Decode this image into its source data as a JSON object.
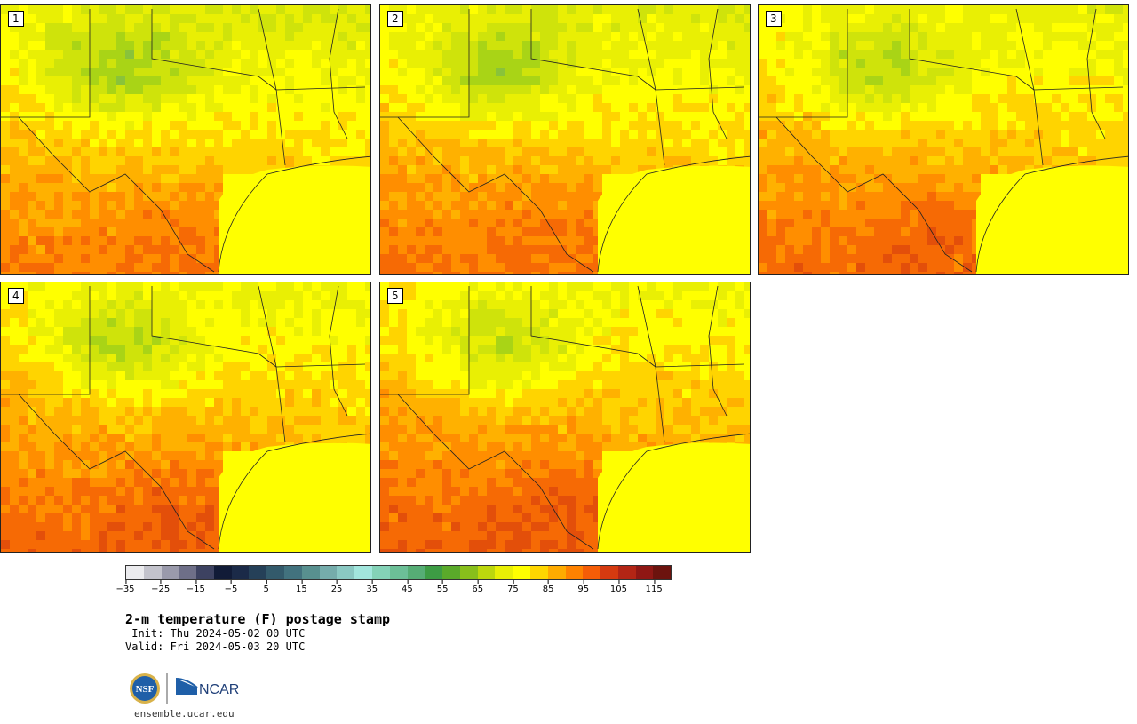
{
  "figure": {
    "title": "2-m temperature (F) postage stamp",
    "init_line": " Init: Thu 2024-05-02 00 UTC",
    "valid_line": "Valid: Fri 2024-05-03 20 UTC",
    "url": "ensemble.ucar.edu"
  },
  "logos": {
    "nsf": "NSF",
    "ncar": "NCAR"
  },
  "panels": [
    {
      "label": "1",
      "variant": 1
    },
    {
      "label": "2",
      "variant": 2
    },
    {
      "label": "3",
      "variant": 3
    },
    {
      "label": "4",
      "variant": 4
    },
    {
      "label": "5",
      "variant": 5
    }
  ],
  "colorbar": {
    "colors": [
      "#ebebee",
      "#c3c3cc",
      "#9a9aab",
      "#6e6f88",
      "#3d4261",
      "#111b37",
      "#1b2a48",
      "#254058",
      "#335a6b",
      "#42727e",
      "#58908f",
      "#75acab",
      "#8ac8c2",
      "#a2e6dd",
      "#84d2b7",
      "#6cbf97",
      "#56ad75",
      "#3d9c44",
      "#5aaa2a",
      "#88bf1b",
      "#bcd70d",
      "#e8ef05",
      "#ffff00",
      "#ffd600",
      "#ffab00",
      "#ff8200",
      "#f55d07",
      "#d53a10",
      "#b32515",
      "#8f1714",
      "#6c130e"
    ],
    "ticks": [
      "−35",
      "−25",
      "−15",
      "−5",
      "5",
      "15",
      "25",
      "35",
      "45",
      "55",
      "65",
      "75",
      "85",
      "95",
      "105",
      "115"
    ],
    "tick_indices": [
      0,
      2,
      4,
      6,
      8,
      10,
      12,
      14,
      16,
      18,
      20,
      22,
      24,
      26,
      28,
      30
    ]
  }
}
